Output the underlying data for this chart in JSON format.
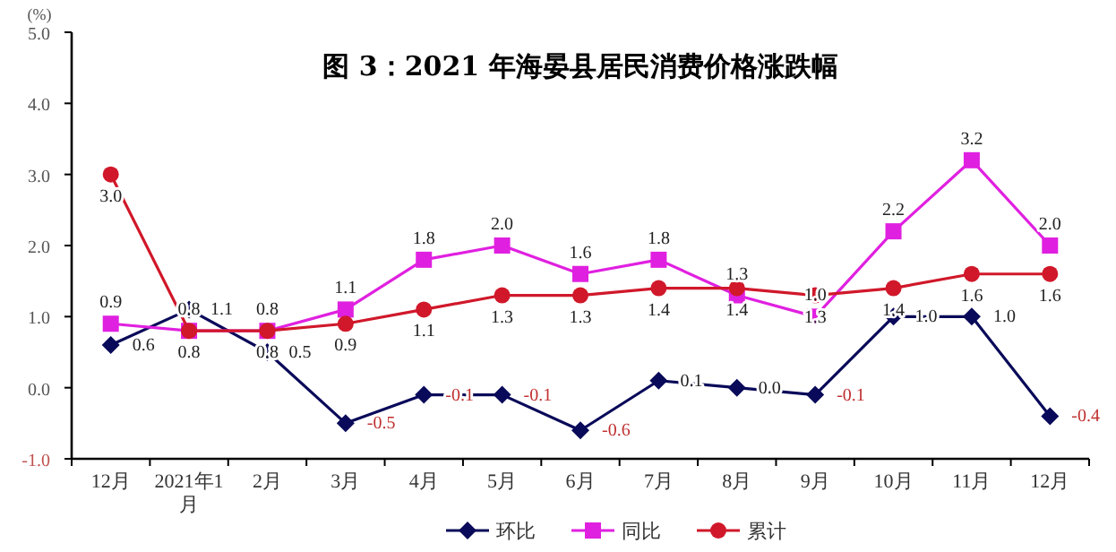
{
  "chart_data": {
    "type": "line",
    "title": "图 3：2021 年海晏县居民消费价格涨跌幅",
    "ylabel": "(%)",
    "categories": [
      "12月",
      "2021年1月",
      "2月",
      "3月",
      "4月",
      "5月",
      "6月",
      "7月",
      "8月",
      "9月",
      "10月",
      "11月",
      "12月"
    ],
    "series": [
      {
        "name": "环比",
        "color": "#0a0a5a",
        "marker": "diamond",
        "values": [
          0.6,
          1.1,
          0.5,
          -0.5,
          -0.1,
          -0.1,
          -0.6,
          0.1,
          0.0,
          -0.1,
          1.0,
          1.0,
          -0.4
        ],
        "value_labels": [
          "0.6",
          "1.1",
          "0.5",
          "-0.5",
          "-0.1",
          "-0.1",
          "-0.6",
          "0.1",
          "0.0",
          "-0.1",
          "1.0",
          "1.0",
          "-0.4"
        ]
      },
      {
        "name": "同比",
        "color": "#e020e0",
        "marker": "square",
        "values": [
          0.9,
          0.8,
          0.8,
          1.1,
          1.8,
          2.0,
          1.6,
          1.8,
          1.3,
          1.0,
          2.2,
          3.2,
          2.0
        ],
        "value_labels": [
          "0.9",
          "0.8",
          "0.8",
          "1.1",
          "1.8",
          "2.0",
          "1.6",
          "1.8",
          "1.3",
          "1.0",
          "2.2",
          "3.2",
          "2.0"
        ]
      },
      {
        "name": "累计",
        "color": "#d0182a",
        "marker": "circle",
        "values": [
          3.0,
          0.8,
          0.8,
          0.9,
          1.1,
          1.3,
          1.3,
          1.4,
          1.4,
          1.3,
          1.4,
          1.6,
          1.6
        ],
        "value_labels": [
          "3.0",
          "0.8",
          "0.8",
          "0.9",
          "1.1",
          "1.3",
          "1.3",
          "1.4",
          "1.4",
          "1.3",
          "1.4",
          "1.6",
          "1.6"
        ]
      }
    ],
    "ylim": [
      -1,
      5
    ],
    "yticks": [
      {
        "value": -1,
        "label": "-1.0"
      },
      {
        "value": 0,
        "label": "0.0"
      },
      {
        "value": 1,
        "label": "1.0"
      },
      {
        "value": 2,
        "label": "2.0"
      },
      {
        "value": 3,
        "label": "3.0"
      },
      {
        "value": 4,
        "label": "4.0"
      },
      {
        "value": 5,
        "label": "5.0"
      }
    ],
    "legend": "bottom",
    "grid": false
  }
}
